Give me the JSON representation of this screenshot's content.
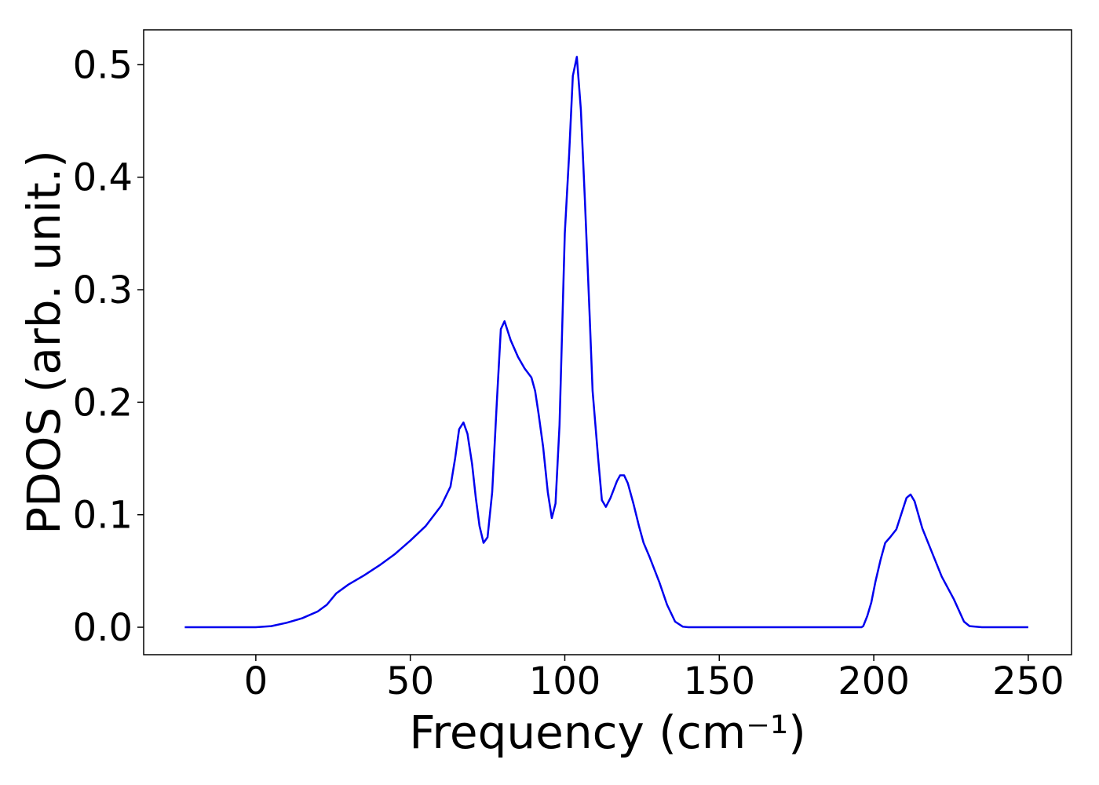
{
  "chart_data": {
    "type": "line",
    "xlabel": "Frequency (cm⁻¹)",
    "ylabel": "PDOS (arb. unit.)",
    "x": [
      -23,
      0,
      5,
      10,
      15,
      20,
      23,
      26,
      30,
      35,
      40,
      45,
      50,
      55,
      60,
      63,
      64.5,
      65.8,
      67.2,
      68.5,
      70,
      71.2,
      72.4,
      73.7,
      75,
      76.5,
      78,
      79.3,
      80.5,
      82.5,
      84.9,
      87,
      89.2,
      90.4,
      91.5,
      93,
      94.5,
      95.8,
      97,
      98.3,
      100,
      101.4,
      102.6,
      103.9,
      105.2,
      106.5,
      108,
      109,
      110.8,
      112,
      113.3,
      114.8,
      116.9,
      117.9,
      119.2,
      120.4,
      122.2,
      124,
      125.5,
      127.5,
      130.6,
      133.1,
      135.7,
      138.2,
      140,
      196,
      196.6,
      197.9,
      199.2,
      200.5,
      202.2,
      203.7,
      205.3,
      207.3,
      210.6,
      211.9,
      213.2,
      215.7,
      219.5,
      222,
      225.9,
      229.2,
      231,
      235,
      250
    ],
    "series": [
      {
        "name": "PDOS",
        "color": "#0000ee",
        "values": [
          0,
          0,
          0.001,
          0.004,
          0.008,
          0.014,
          0.02,
          0.03,
          0.038,
          0.046,
          0.055,
          0.065,
          0.077,
          0.09,
          0.108,
          0.125,
          0.15,
          0.176,
          0.182,
          0.172,
          0.145,
          0.115,
          0.09,
          0.075,
          0.08,
          0.12,
          0.2,
          0.265,
          0.272,
          0.255,
          0.24,
          0.23,
          0.222,
          0.21,
          0.19,
          0.16,
          0.12,
          0.097,
          0.11,
          0.18,
          0.35,
          0.42,
          0.49,
          0.507,
          0.46,
          0.38,
          0.28,
          0.21,
          0.15,
          0.113,
          0.107,
          0.115,
          0.13,
          0.135,
          0.135,
          0.128,
          0.11,
          0.09,
          0.075,
          0.062,
          0.04,
          0.02,
          0.005,
          0.0005,
          0,
          0,
          0.001,
          0.01,
          0.022,
          0.04,
          0.06,
          0.075,
          0.08,
          0.087,
          0.115,
          0.118,
          0.112,
          0.088,
          0.062,
          0.045,
          0.025,
          0.005,
          0.001,
          0,
          0
        ]
      }
    ],
    "xlim": [
      -36.3,
      264
    ],
    "ylim": [
      -0.0244,
      0.531
    ],
    "xticks": [
      0,
      50,
      100,
      150,
      200,
      250
    ],
    "yticks": [
      {
        "value": 0,
        "label": "0.0"
      },
      0.1,
      0.2,
      0.3,
      0.4,
      0.5
    ]
  }
}
